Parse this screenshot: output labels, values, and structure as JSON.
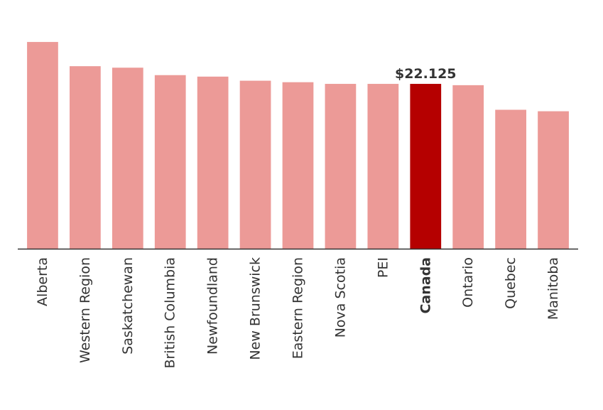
{
  "chart_data": {
    "type": "bar",
    "categories": [
      "Alberta",
      "Western Region",
      "Saskatchewan",
      "British Columbia",
      "Newfoundland",
      "New Brunswick",
      "Eastern Region",
      "Nova Scotia",
      "PEI",
      "Canada",
      "Ontario",
      "Quebec",
      "Manitoba"
    ],
    "values": [
      27.75,
      24.5,
      24.3,
      23.3,
      23.1,
      22.55,
      22.35,
      22.125,
      22.125,
      22.125,
      21.95,
      18.65,
      18.45
    ],
    "highlight_category": "Canada",
    "data_labels": [
      {
        "category": "Canada",
        "text": "$22.125"
      }
    ],
    "ylim": [
      0,
      31
    ],
    "grid": false,
    "legend": "none",
    "colors": {
      "bar": "#ec9a97",
      "highlight": "#b50000",
      "axis": "#333333",
      "text": "#333333"
    }
  }
}
